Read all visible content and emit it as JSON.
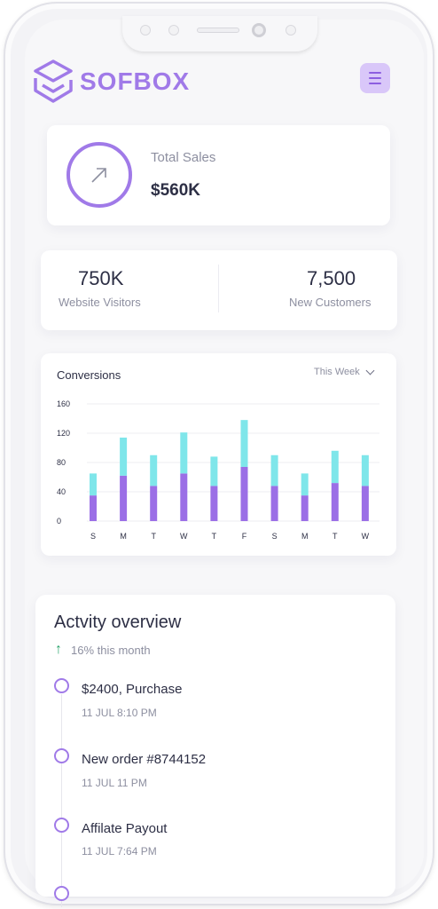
{
  "brand": {
    "name": "SOFBOX",
    "accent": "#a07ae8"
  },
  "header": {
    "menu_icon": "hamburger-icon"
  },
  "total_sales": {
    "label": "Total Sales",
    "value": "$560K",
    "icon": "arrow-up-right-icon"
  },
  "stats": [
    {
      "value": "750K",
      "label": "Website Visitors"
    },
    {
      "value": "7,500",
      "label": "New Customers"
    }
  ],
  "conversions": {
    "title": "Conversions",
    "period": "This Week",
    "chart_data": {
      "type": "bar",
      "stacked": true,
      "categories": [
        "S",
        "M",
        "T",
        "W",
        "T",
        "F",
        "S",
        "M",
        "T",
        "W"
      ],
      "series": [
        {
          "values": [
            35,
            62,
            48,
            65,
            48,
            74,
            48,
            35,
            52,
            48
          ],
          "color": "#9b6fe6"
        },
        {
          "values": [
            30,
            52,
            42,
            56,
            40,
            64,
            42,
            30,
            44,
            42
          ],
          "color": "#7fe6ea"
        }
      ],
      "yticks": [
        0,
        40,
        80,
        120,
        160
      ],
      "ylim": [
        0,
        160
      ],
      "grid": true
    }
  },
  "activity": {
    "title": "Actvity overview",
    "growth": "16% this month",
    "growth_icon": "arrow-up-icon",
    "items": [
      {
        "title": "$2400, Purchase",
        "time": "11 JUL 8:10 PM"
      },
      {
        "title": "New order #8744152",
        "time": "11 JUL 11 PM"
      },
      {
        "title": "Affilate Payout",
        "time": "11 JUL 7:64 PM"
      }
    ]
  }
}
